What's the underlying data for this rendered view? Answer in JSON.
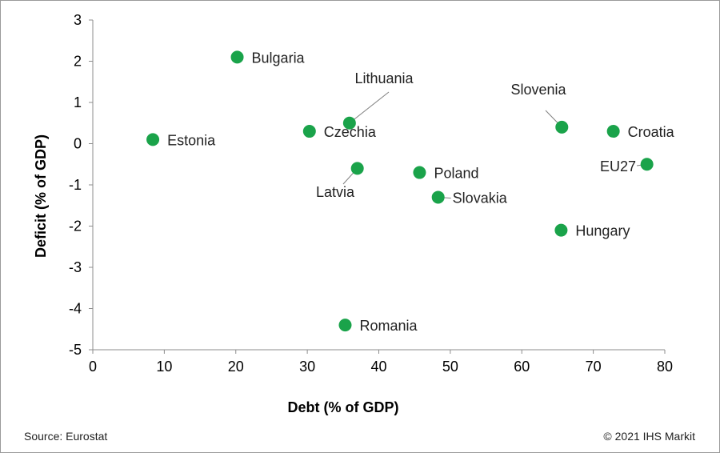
{
  "chart_data": {
    "type": "scatter",
    "title": "",
    "xlabel": "Debt (% of GDP)",
    "ylabel": "Deficit (% of GDP)",
    "xlim": [
      0,
      80
    ],
    "ylim": [
      -5,
      3
    ],
    "xticks": [
      "0",
      "10",
      "20",
      "30",
      "40",
      "50",
      "60",
      "70",
      "80"
    ],
    "yticks": [
      "3",
      "2",
      "1",
      "0",
      "-1",
      "-2",
      "-3",
      "-4",
      "-5"
    ],
    "grid": false,
    "marker_color": "#1aa34a",
    "points": [
      {
        "label": "Estonia",
        "x": 8.4,
        "y": 0.1
      },
      {
        "label": "Bulgaria",
        "x": 20.2,
        "y": 2.1
      },
      {
        "label": "Czechia",
        "x": 30.3,
        "y": 0.3
      },
      {
        "label": "Lithuania",
        "x": 35.9,
        "y": 0.5
      },
      {
        "label": "Latvia",
        "x": 37.0,
        "y": -0.6
      },
      {
        "label": "Romania",
        "x": 35.3,
        "y": -4.4
      },
      {
        "label": "Poland",
        "x": 45.7,
        "y": -0.7
      },
      {
        "label": "Slovakia",
        "x": 48.3,
        "y": -1.3
      },
      {
        "label": "Slovenia",
        "x": 65.6,
        "y": 0.4
      },
      {
        "label": "Hungary",
        "x": 65.5,
        "y": -2.1
      },
      {
        "label": "Croatia",
        "x": 72.8,
        "y": 0.3
      },
      {
        "label": "EU27",
        "x": 77.5,
        "y": -0.5
      }
    ]
  },
  "footer": {
    "source": "Source: Eurostat",
    "copyright": "© 2021 IHS Markit"
  }
}
